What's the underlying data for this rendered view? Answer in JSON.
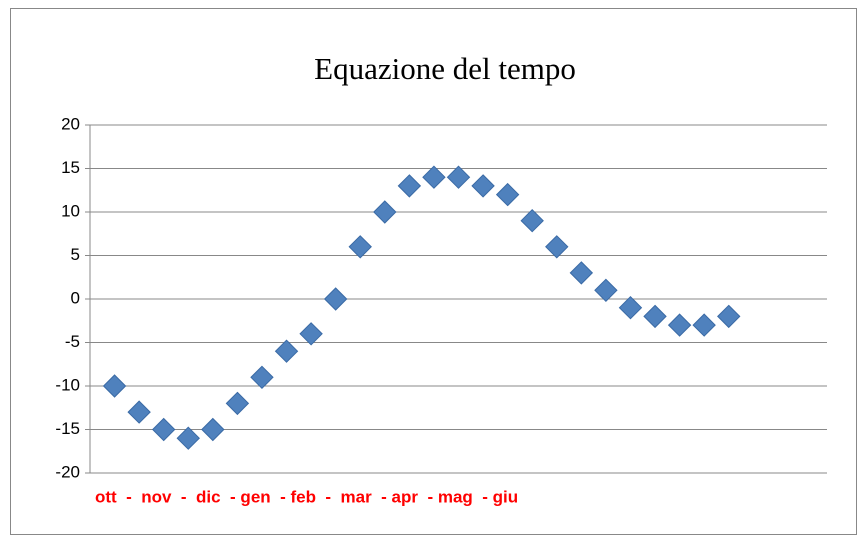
{
  "chart_data": {
    "type": "scatter",
    "title": "Equazione del tempo",
    "annotation": "ott  -  nov  -  dic  - gen  - feb  -  mar  - apr  - mag  - giu",
    "x": [
      1,
      2,
      3,
      4,
      5,
      6,
      7,
      8,
      9,
      10,
      11,
      12,
      13,
      14,
      15,
      16,
      17,
      18,
      19,
      20,
      21,
      22,
      23,
      24,
      25,
      26
    ],
    "values": [
      -10,
      -13,
      -15,
      -16,
      -15,
      -12,
      -9,
      -6,
      -4,
      0,
      6,
      10,
      13,
      14,
      14,
      13,
      12,
      9,
      6,
      3,
      1,
      -1,
      -2,
      -3,
      -3,
      -2
    ],
    "color": "#4f81bd",
    "annotation_color": "#ff0000",
    "xlim": [
      0,
      30
    ],
    "ylim": [
      -20,
      20
    ],
    "yticks": [
      20,
      15,
      10,
      5,
      0,
      -5,
      -10,
      -15,
      -20
    ],
    "grid": true
  }
}
